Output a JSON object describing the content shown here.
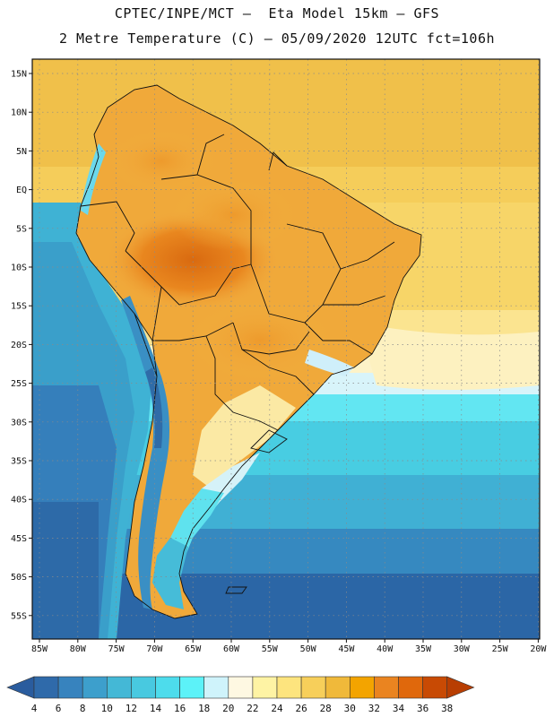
{
  "header": {
    "line1": "CPTEC/INPE/MCT –  Eta Model 15km – GFS",
    "line2": "2 Metre Temperature (C) – 05/09/2020 12UTC fct=106h"
  },
  "map": {
    "lat_labels": [
      "15N",
      "10N",
      "5N",
      "EQ",
      "5S",
      "10S",
      "15S",
      "20S",
      "25S",
      "30S",
      "35S",
      "40S",
      "45S",
      "50S",
      "55S"
    ],
    "lon_labels": [
      "85W",
      "80W",
      "75W",
      "70W",
      "65W",
      "60W",
      "55W",
      "50W",
      "45W",
      "40W",
      "35W",
      "30W",
      "25W",
      "20W"
    ]
  },
  "colorbar": {
    "labels": [
      "4",
      "6",
      "8",
      "10",
      "12",
      "14",
      "16",
      "18",
      "20",
      "22",
      "24",
      "26",
      "28",
      "30",
      "32",
      "34",
      "36",
      "38"
    ],
    "colors": [
      "#2a5c9e",
      "#2f6aaa",
      "#3783be",
      "#3d9fcc",
      "#44b8d6",
      "#48c9e0",
      "#4ddcec",
      "#5cf2f8",
      "#cff3fb",
      "#fef8e2",
      "#fef3a4",
      "#fde47e",
      "#f7cf5a",
      "#f0b93a",
      "#f3a400",
      "#ea8420",
      "#e0680c",
      "#c84a04",
      "#b83e02"
    ]
  }
}
